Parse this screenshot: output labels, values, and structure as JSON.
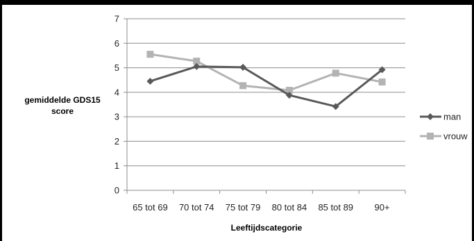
{
  "chart_data": {
    "type": "line",
    "title": "",
    "ylabel_lines": [
      "gemiddelde GDS15",
      "score"
    ],
    "xlabel": "Leeftijdscategorie",
    "categories": [
      "65 tot 69",
      "70 tot 74",
      "75 tot 79",
      "80 tot 84",
      "85 tot 89",
      "90+"
    ],
    "ylim": [
      0,
      7
    ],
    "yticks": [
      0,
      1,
      2,
      3,
      4,
      5,
      6,
      7
    ],
    "grid": true,
    "legend_position": "right",
    "series": [
      {
        "name": "man",
        "values": [
          4.45,
          5.05,
          5.02,
          3.88,
          3.42,
          4.92
        ],
        "color": "#595959",
        "marker": "diamond"
      },
      {
        "name": "vrouw",
        "values": [
          5.55,
          5.27,
          4.27,
          4.08,
          4.78,
          4.42
        ],
        "color": "#b3b3b3",
        "marker": "square"
      }
    ]
  }
}
